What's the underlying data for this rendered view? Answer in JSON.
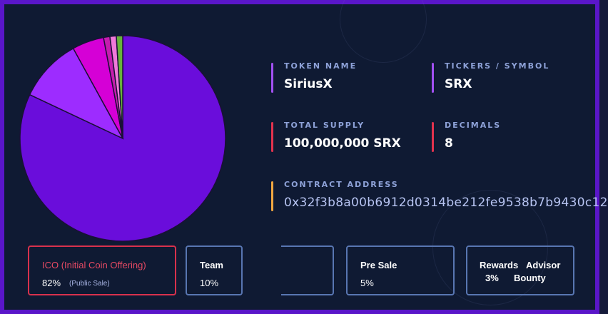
{
  "chart_data": {
    "type": "pie",
    "slices": [
      {
        "value": 82,
        "color": "#6a0ddb"
      },
      {
        "value": 10,
        "color": "#9d2cff"
      },
      {
        "value": 5,
        "color": "#d500d6"
      },
      {
        "value": 1,
        "color": "#c51dae"
      },
      {
        "value": 1,
        "color": "#f07ad9"
      },
      {
        "value": 1,
        "color": "#67b33a"
      }
    ],
    "slice_stroke": "#1a1036"
  },
  "token": {
    "name_label": "TOKEN NAME",
    "name_value": "SiriusX",
    "ticker_label": "TICKERS / SYMBOL",
    "ticker_value": "SRX",
    "supply_label": "TOTAL SUPPLY",
    "supply_value": "100,000,000 SRX",
    "decimals_label": "DECIMALS",
    "decimals_value": "8",
    "contract_label": "CONTRACT ADDRESS",
    "contract_value": "0x32f3b8a00b6912d0314be212fe9538b7b9430c12"
  },
  "accents": {
    "purple": "#a250f2",
    "red": "#e2334e",
    "orange": "#f0a640"
  },
  "cards": {
    "ico": {
      "title": "ICO (Initial Coin Offering)",
      "percent": "82%",
      "note": "(Public Sale)"
    },
    "team": {
      "title": "Team",
      "percent": "10%"
    },
    "presale": {
      "title": "Pre Sale",
      "percent": "5%"
    },
    "rewards": {
      "title": "Rewards",
      "percent": "3%"
    },
    "advisor": {
      "title": "Advisor"
    },
    "bounty": {
      "title": "Bounty"
    }
  }
}
